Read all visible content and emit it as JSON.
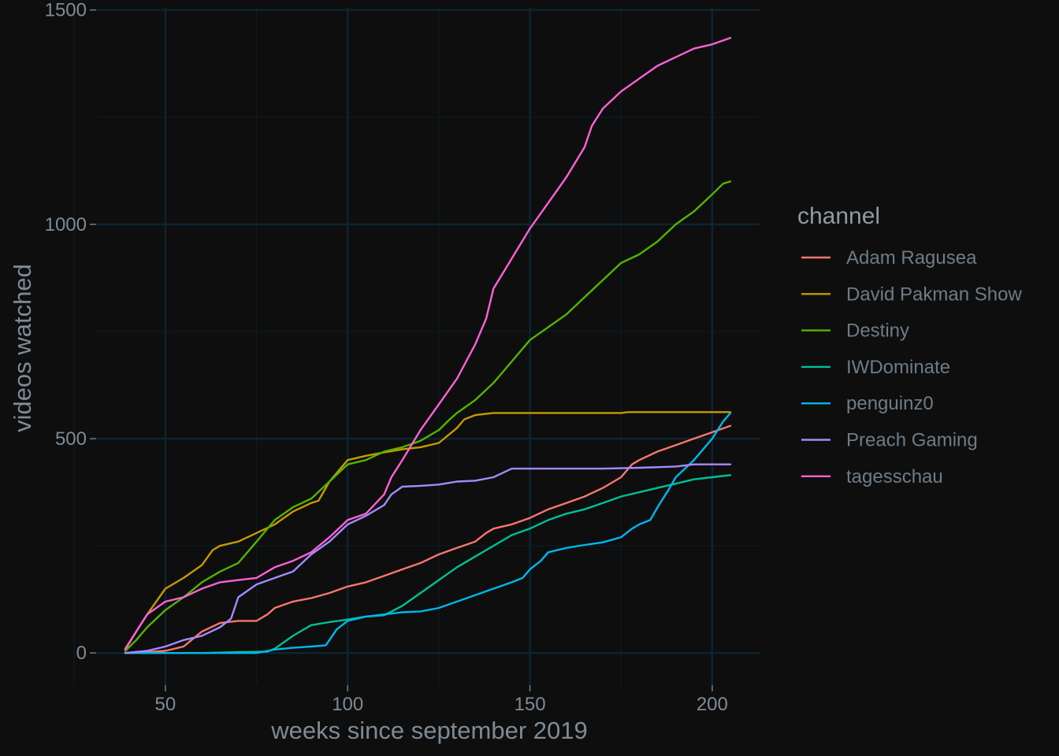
{
  "chart_data": {
    "type": "line",
    "xlabel": "weeks since september 2019",
    "ylabel": "videos watched",
    "xlim": [
      31,
      213
    ],
    "ylim": [
      -75,
      1505
    ],
    "x_ticks": [
      50,
      100,
      150,
      200
    ],
    "y_ticks": [
      0,
      500,
      1000,
      1500
    ],
    "grid": true,
    "legend": {
      "title": "channel",
      "position": "right"
    },
    "colors": {
      "background": "#0e0e0f",
      "grid_major": "#0c2532",
      "grid_minor": "#0b1c25",
      "text": "#7e8b95"
    },
    "series": [
      {
        "name": "Adam Ragusea",
        "color": "#f8766d",
        "points": [
          [
            39,
            0
          ],
          [
            45,
            2
          ],
          [
            50,
            5
          ],
          [
            55,
            15
          ],
          [
            60,
            50
          ],
          [
            65,
            70
          ],
          [
            70,
            75
          ],
          [
            75,
            75
          ],
          [
            78,
            90
          ],
          [
            80,
            105
          ],
          [
            85,
            120
          ],
          [
            90,
            128
          ],
          [
            95,
            140
          ],
          [
            100,
            155
          ],
          [
            105,
            165
          ],
          [
            110,
            180
          ],
          [
            115,
            195
          ],
          [
            120,
            210
          ],
          [
            125,
            230
          ],
          [
            130,
            245
          ],
          [
            135,
            260
          ],
          [
            138,
            280
          ],
          [
            140,
            290
          ],
          [
            145,
            300
          ],
          [
            150,
            315
          ],
          [
            155,
            335
          ],
          [
            160,
            350
          ],
          [
            165,
            365
          ],
          [
            170,
            385
          ],
          [
            175,
            410
          ],
          [
            178,
            440
          ],
          [
            180,
            450
          ],
          [
            185,
            470
          ],
          [
            190,
            485
          ],
          [
            195,
            500
          ],
          [
            200,
            515
          ],
          [
            205,
            530
          ]
        ]
      },
      {
        "name": "David Pakman Show",
        "color": "#c49a00",
        "points": [
          [
            39,
            8
          ],
          [
            42,
            50
          ],
          [
            45,
            90
          ],
          [
            50,
            150
          ],
          [
            55,
            175
          ],
          [
            60,
            205
          ],
          [
            63,
            240
          ],
          [
            65,
            250
          ],
          [
            70,
            260
          ],
          [
            75,
            280
          ],
          [
            80,
            300
          ],
          [
            85,
            330
          ],
          [
            90,
            350
          ],
          [
            92,
            355
          ],
          [
            95,
            400
          ],
          [
            100,
            450
          ],
          [
            105,
            460
          ],
          [
            110,
            468
          ],
          [
            115,
            475
          ],
          [
            120,
            480
          ],
          [
            125,
            490
          ],
          [
            130,
            525
          ],
          [
            132,
            545
          ],
          [
            135,
            555
          ],
          [
            140,
            560
          ],
          [
            150,
            560
          ],
          [
            160,
            560
          ],
          [
            175,
            560
          ],
          [
            177,
            562
          ],
          [
            190,
            562
          ],
          [
            205,
            562
          ]
        ]
      },
      {
        "name": "Destiny",
        "color": "#53b400",
        "points": [
          [
            39,
            5
          ],
          [
            42,
            30
          ],
          [
            45,
            60
          ],
          [
            50,
            100
          ],
          [
            55,
            130
          ],
          [
            60,
            165
          ],
          [
            65,
            190
          ],
          [
            70,
            210
          ],
          [
            75,
            260
          ],
          [
            80,
            310
          ],
          [
            85,
            340
          ],
          [
            90,
            360
          ],
          [
            95,
            400
          ],
          [
            100,
            440
          ],
          [
            105,
            450
          ],
          [
            110,
            470
          ],
          [
            115,
            480
          ],
          [
            120,
            495
          ],
          [
            125,
            520
          ],
          [
            128,
            545
          ],
          [
            130,
            560
          ],
          [
            135,
            590
          ],
          [
            140,
            630
          ],
          [
            145,
            680
          ],
          [
            150,
            730
          ],
          [
            155,
            760
          ],
          [
            160,
            790
          ],
          [
            165,
            830
          ],
          [
            170,
            870
          ],
          [
            175,
            910
          ],
          [
            180,
            930
          ],
          [
            185,
            960
          ],
          [
            190,
            1000
          ],
          [
            195,
            1030
          ],
          [
            200,
            1070
          ],
          [
            203,
            1095
          ],
          [
            205,
            1100
          ]
        ]
      },
      {
        "name": "IWDominate",
        "color": "#00c094",
        "points": [
          [
            39,
            0
          ],
          [
            60,
            0
          ],
          [
            70,
            2
          ],
          [
            78,
            3
          ],
          [
            80,
            10
          ],
          [
            85,
            40
          ],
          [
            90,
            65
          ],
          [
            95,
            72
          ],
          [
            100,
            78
          ],
          [
            105,
            85
          ],
          [
            110,
            88
          ],
          [
            115,
            110
          ],
          [
            120,
            140
          ],
          [
            125,
            170
          ],
          [
            130,
            200
          ],
          [
            135,
            225
          ],
          [
            140,
            250
          ],
          [
            145,
            275
          ],
          [
            150,
            290
          ],
          [
            155,
            310
          ],
          [
            160,
            325
          ],
          [
            165,
            335
          ],
          [
            170,
            350
          ],
          [
            175,
            365
          ],
          [
            180,
            375
          ],
          [
            185,
            385
          ],
          [
            190,
            395
          ],
          [
            195,
            405
          ],
          [
            200,
            410
          ],
          [
            205,
            415
          ]
        ]
      },
      {
        "name": "penguinz0",
        "color": "#00b6eb",
        "points": [
          [
            39,
            0
          ],
          [
            75,
            0
          ],
          [
            80,
            8
          ],
          [
            85,
            12
          ],
          [
            90,
            15
          ],
          [
            94,
            18
          ],
          [
            95,
            30
          ],
          [
            97,
            55
          ],
          [
            100,
            75
          ],
          [
            105,
            85
          ],
          [
            110,
            90
          ],
          [
            115,
            95
          ],
          [
            120,
            97
          ],
          [
            125,
            105
          ],
          [
            130,
            120
          ],
          [
            135,
            135
          ],
          [
            140,
            150
          ],
          [
            145,
            165
          ],
          [
            148,
            175
          ],
          [
            150,
            195
          ],
          [
            153,
            215
          ],
          [
            155,
            235
          ],
          [
            160,
            245
          ],
          [
            165,
            252
          ],
          [
            170,
            258
          ],
          [
            175,
            270
          ],
          [
            178,
            290
          ],
          [
            180,
            300
          ],
          [
            183,
            310
          ],
          [
            185,
            340
          ],
          [
            188,
            380
          ],
          [
            190,
            410
          ],
          [
            195,
            450
          ],
          [
            200,
            500
          ],
          [
            203,
            540
          ],
          [
            205,
            560
          ]
        ]
      },
      {
        "name": "Preach Gaming",
        "color": "#a58aff",
        "points": [
          [
            39,
            0
          ],
          [
            45,
            5
          ],
          [
            50,
            15
          ],
          [
            55,
            30
          ],
          [
            60,
            40
          ],
          [
            65,
            60
          ],
          [
            68,
            80
          ],
          [
            70,
            130
          ],
          [
            75,
            160
          ],
          [
            80,
            175
          ],
          [
            85,
            190
          ],
          [
            90,
            230
          ],
          [
            95,
            260
          ],
          [
            100,
            300
          ],
          [
            105,
            320
          ],
          [
            110,
            345
          ],
          [
            112,
            370
          ],
          [
            115,
            388
          ],
          [
            120,
            390
          ],
          [
            125,
            393
          ],
          [
            130,
            400
          ],
          [
            135,
            402
          ],
          [
            140,
            410
          ],
          [
            145,
            430
          ],
          [
            150,
            430
          ],
          [
            160,
            430
          ],
          [
            170,
            430
          ],
          [
            180,
            432
          ],
          [
            190,
            435
          ],
          [
            195,
            440
          ],
          [
            205,
            440
          ]
        ]
      },
      {
        "name": "tagesschau",
        "color": "#fb61d7",
        "points": [
          [
            39,
            10
          ],
          [
            42,
            50
          ],
          [
            45,
            90
          ],
          [
            50,
            120
          ],
          [
            55,
            130
          ],
          [
            60,
            150
          ],
          [
            65,
            165
          ],
          [
            70,
            170
          ],
          [
            75,
            175
          ],
          [
            80,
            200
          ],
          [
            85,
            215
          ],
          [
            90,
            235
          ],
          [
            95,
            270
          ],
          [
            100,
            310
          ],
          [
            105,
            325
          ],
          [
            110,
            370
          ],
          [
            112,
            410
          ],
          [
            115,
            450
          ],
          [
            120,
            520
          ],
          [
            125,
            580
          ],
          [
            130,
            640
          ],
          [
            135,
            720
          ],
          [
            138,
            780
          ],
          [
            140,
            850
          ],
          [
            145,
            920
          ],
          [
            150,
            990
          ],
          [
            155,
            1050
          ],
          [
            160,
            1110
          ],
          [
            165,
            1180
          ],
          [
            167,
            1230
          ],
          [
            170,
            1270
          ],
          [
            175,
            1310
          ],
          [
            180,
            1340
          ],
          [
            185,
            1370
          ],
          [
            190,
            1390
          ],
          [
            195,
            1410
          ],
          [
            200,
            1420
          ],
          [
            205,
            1435
          ]
        ]
      }
    ]
  }
}
